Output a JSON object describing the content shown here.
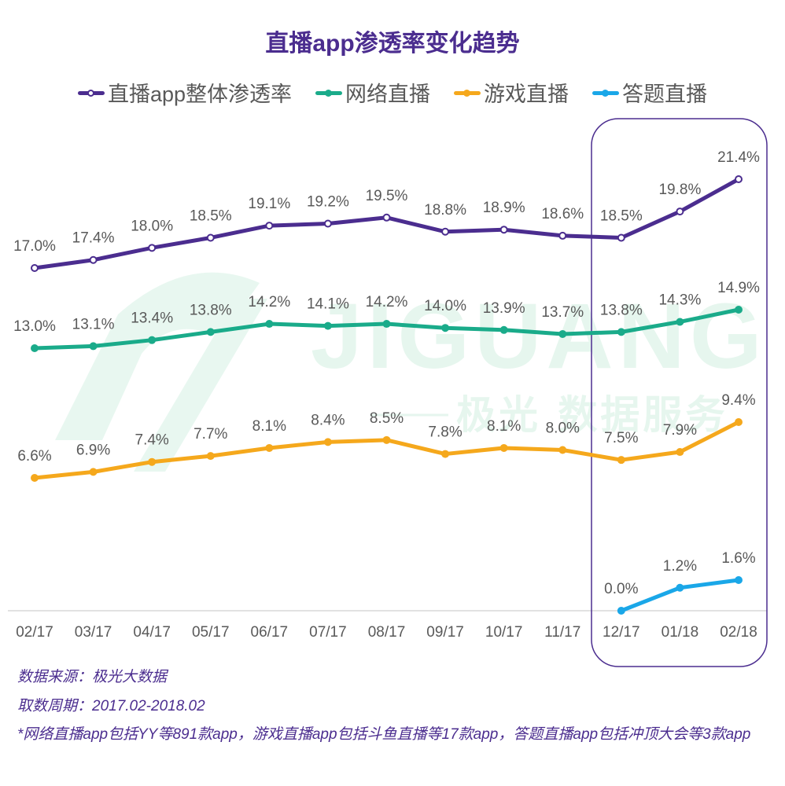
{
  "chart_data": {
    "type": "line",
    "title": "直播app渗透率变化趋势",
    "xlabel": "",
    "ylabel": "",
    "categories": [
      "02/17",
      "03/17",
      "04/17",
      "05/17",
      "06/17",
      "07/17",
      "08/17",
      "09/17",
      "10/17",
      "11/17",
      "12/17",
      "01/18",
      "02/18"
    ],
    "series": [
      {
        "name": "直播app整体渗透率",
        "color": "#4b2d8f",
        "marker": "hollow-circle",
        "values": [
          17.0,
          17.4,
          18.0,
          18.5,
          19.1,
          19.2,
          19.5,
          18.8,
          18.9,
          18.6,
          18.5,
          19.8,
          21.4
        ],
        "labels": [
          "17.0%",
          "17.4%",
          "18.0%",
          "18.5%",
          "19.1%",
          "19.2%",
          "19.5%",
          "18.8%",
          "18.9%",
          "18.6%",
          "18.5%",
          "19.8%",
          "21.4%"
        ]
      },
      {
        "name": "网络直播",
        "color": "#1aab8a",
        "marker": "filled-circle",
        "values": [
          13.0,
          13.1,
          13.4,
          13.8,
          14.2,
          14.1,
          14.2,
          14.0,
          13.9,
          13.7,
          13.8,
          14.3,
          14.9
        ],
        "labels": [
          "13.0%",
          "13.1%",
          "13.4%",
          "13.8%",
          "14.2%",
          "14.1%",
          "14.2%",
          "14.0%",
          "13.9%",
          "13.7%",
          "13.8%",
          "14.3%",
          "14.9%"
        ]
      },
      {
        "name": "游戏直播",
        "color": "#f5a81c",
        "marker": "filled-circle",
        "values": [
          6.6,
          6.9,
          7.4,
          7.7,
          8.1,
          8.4,
          8.5,
          7.8,
          8.1,
          8.0,
          7.5,
          7.9,
          9.4
        ],
        "labels": [
          "6.6%",
          "6.9%",
          "7.4%",
          "7.7%",
          "8.1%",
          "8.4%",
          "8.5%",
          "7.8%",
          "8.1%",
          "8.0%",
          "7.5%",
          "7.9%",
          "9.4%"
        ]
      },
      {
        "name": "答题直播",
        "color": "#1aa7e8",
        "marker": "filled-circle",
        "values": [
          null,
          null,
          null,
          null,
          null,
          null,
          null,
          null,
          null,
          null,
          0.0,
          1.2,
          1.6
        ],
        "labels": [
          "",
          "",
          "",
          "",
          "",
          "",
          "",
          "",
          "",
          "",
          "0.0%",
          "1.2%",
          "1.6%"
        ]
      }
    ],
    "legend_position": "top-center",
    "grid": false,
    "highlight": {
      "from": "12/17",
      "to": "02/18",
      "color": "#4b2d8f"
    },
    "axis_line_color": "#d9d9d9",
    "label_color": "#595959"
  },
  "watermark": {
    "text_en": "JIGUANG",
    "text_cn": "极光 数据服务",
    "color": "#e3f4ec"
  },
  "footnotes": {
    "source": "数据来源：极光大数据",
    "period": "取数周期：2017.02-2018.02",
    "note": "*网络直播app包括YY等891款app，游戏直播app包括斗鱼直播等17款app，答题直播app包括冲顶大会等3款app"
  }
}
